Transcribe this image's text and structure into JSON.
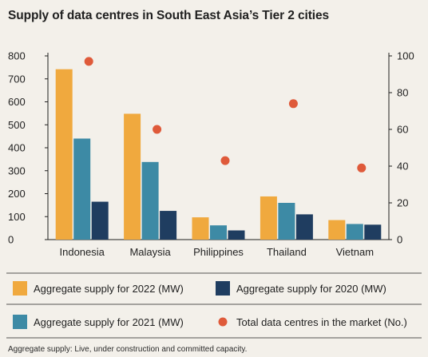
{
  "chart_data": {
    "type": "bar",
    "title": "Supply of data centres in South East Asia’s Tier 2 cities",
    "categories": [
      "Indonesia",
      "Malaysia",
      "Philippines",
      "Thailand",
      "Vietnam"
    ],
    "series": [
      {
        "name": "Aggregate supply for 2022 (MW)",
        "axis": "left",
        "kind": "bar",
        "color": "#f0a93e",
        "values": [
          742,
          548,
          97,
          188,
          85
        ]
      },
      {
        "name": "Aggregate supply for 2021 (MW)",
        "axis": "left",
        "kind": "bar",
        "color": "#3d8aa5",
        "values": [
          440,
          338,
          62,
          160,
          68
        ]
      },
      {
        "name": "Aggregate supply for 2020 (MW)",
        "axis": "left",
        "kind": "bar",
        "color": "#1f3d60",
        "values": [
          165,
          125,
          40,
          110,
          65
        ]
      },
      {
        "name": "Total data centres in the market (No.)",
        "axis": "right",
        "kind": "dot",
        "color": "#df5a3a",
        "values": [
          97,
          60,
          43,
          74,
          39
        ]
      }
    ],
    "y_left": {
      "min": 0,
      "max": 800,
      "ticks": [
        0,
        100,
        200,
        300,
        400,
        500,
        600,
        700,
        800
      ]
    },
    "y_right": {
      "min": 0,
      "max": 100,
      "ticks": [
        0,
        20,
        40,
        60,
        80,
        100
      ]
    },
    "legend": {
      "position": "bottom",
      "order": [
        {
          "series": 0
        },
        {
          "series": 2
        },
        {
          "series": 1
        },
        {
          "series": 3
        }
      ]
    },
    "grid": false
  },
  "footnote": "Aggregate supply: Live, under construction and committed capacity."
}
